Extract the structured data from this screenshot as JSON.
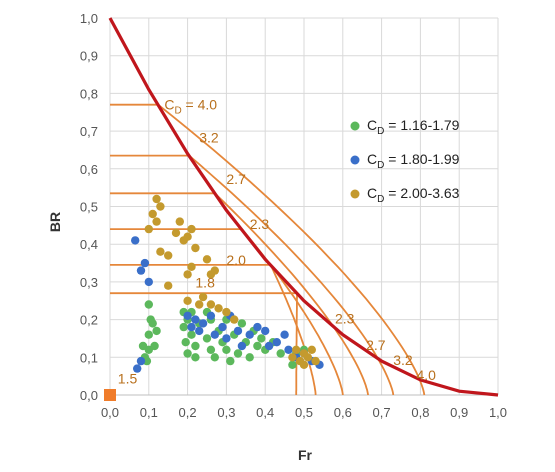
{
  "chart_data": {
    "type": "scatter",
    "xlabel": "Fr",
    "ylabel": "BR",
    "xlim": [
      0,
      1
    ],
    "ylim": [
      0,
      1
    ],
    "x_ticks": [
      "0,0",
      "0,1",
      "0,2",
      "0,3",
      "0,4",
      "0,5",
      "0,6",
      "0,7",
      "0,8",
      "0,9",
      "1,0"
    ],
    "y_ticks": [
      "0,0",
      "0,1",
      "0,2",
      "0,3",
      "0,4",
      "0,5",
      "0,6",
      "0,7",
      "0,8",
      "0,9",
      "1,0"
    ],
    "grid": true,
    "legend_position": "right",
    "colors": {
      "limit_curve": "#c0161c",
      "cd_curves": "#e5873a",
      "cd_labels": "#b8701d",
      "marker_origin": "#f07c2a",
      "grid": "#d9d9d9"
    },
    "limit_curve": {
      "name": "",
      "points": [
        [
          0,
          1.0
        ],
        [
          0.1,
          0.81
        ],
        [
          0.2,
          0.64
        ],
        [
          0.3,
          0.49
        ],
        [
          0.4,
          0.36
        ],
        [
          0.5,
          0.25
        ],
        [
          0.6,
          0.16
        ],
        [
          0.7,
          0.09
        ],
        [
          0.8,
          0.04
        ],
        [
          0.9,
          0.01
        ],
        [
          1.0,
          0
        ]
      ]
    },
    "cd_curves": [
      {
        "cd": 1.5,
        "label": "1.5",
        "label_x": 0.02,
        "label_y": 0.03,
        "plateau": 0.0,
        "asymptote": 0.0
      },
      {
        "cd": 1.8,
        "label": "1.8",
        "label_x": 0.22,
        "label_y": 0.285,
        "plateau": 0.27,
        "asymptote": 0.48
      },
      {
        "cd": 2.0,
        "label": "2.0",
        "label_x": 0.3,
        "label_y": 0.345,
        "plateau": 0.345,
        "asymptote": 0.53
      },
      {
        "cd": 2.3,
        "label": "2.3",
        "label_x": 0.36,
        "label_y": 0.44,
        "plateau": 0.44,
        "asymptote": 0.6
      },
      {
        "cd": 2.3,
        "label": "2.3",
        "label_x": 0.58,
        "label_y": 0.19,
        "plateau": null,
        "asymptote": null
      },
      {
        "cd": 2.7,
        "label": "2.7",
        "label_x": 0.3,
        "label_y": 0.56,
        "plateau": 0.535,
        "asymptote": 0.665
      },
      {
        "cd": 2.7,
        "label": "2.7",
        "label_x": 0.66,
        "label_y": 0.12,
        "plateau": null,
        "asymptote": null
      },
      {
        "cd": 3.2,
        "label": "3.2",
        "label_x": 0.23,
        "label_y": 0.67,
        "plateau": 0.635,
        "asymptote": 0.73
      },
      {
        "cd": 3.2,
        "label": "3.2",
        "label_x": 0.73,
        "label_y": 0.08,
        "plateau": null,
        "asymptote": null
      },
      {
        "cd": 4.0,
        "label": "4.0",
        "label_x": 0.79,
        "label_y": 0.04,
        "plateau": 0.77,
        "asymptote": 0.81
      }
    ],
    "cd_top_label": {
      "prefix": "C",
      "sub": "D",
      "suffix": " = 4.0"
    },
    "series": [
      {
        "name": "C_D = 1.16-1.79",
        "legend": {
          "prefix": "C",
          "sub": "D",
          "suffix": " = 1.16-1.79"
        },
        "color": "#5cb85c",
        "points": [
          [
            0.085,
            0.13
          ],
          [
            0.09,
            0.1
          ],
          [
            0.1,
            0.12
          ],
          [
            0.1,
            0.24
          ],
          [
            0.105,
            0.2
          ],
          [
            0.11,
            0.19
          ],
          [
            0.095,
            0.09
          ],
          [
            0.1,
            0.16
          ],
          [
            0.115,
            0.13
          ],
          [
            0.12,
            0.17
          ],
          [
            0.19,
            0.22
          ],
          [
            0.19,
            0.18
          ],
          [
            0.195,
            0.14
          ],
          [
            0.2,
            0.11
          ],
          [
            0.2,
            0.2
          ],
          [
            0.21,
            0.22
          ],
          [
            0.21,
            0.16
          ],
          [
            0.22,
            0.13
          ],
          [
            0.22,
            0.1
          ],
          [
            0.23,
            0.19
          ],
          [
            0.25,
            0.22
          ],
          [
            0.25,
            0.15
          ],
          [
            0.26,
            0.12
          ],
          [
            0.26,
            0.2
          ],
          [
            0.27,
            0.1
          ],
          [
            0.28,
            0.17
          ],
          [
            0.29,
            0.14
          ],
          [
            0.3,
            0.12
          ],
          [
            0.3,
            0.2
          ],
          [
            0.31,
            0.09
          ],
          [
            0.32,
            0.16
          ],
          [
            0.33,
            0.11
          ],
          [
            0.34,
            0.19
          ],
          [
            0.35,
            0.14
          ],
          [
            0.36,
            0.1
          ],
          [
            0.37,
            0.17
          ],
          [
            0.38,
            0.13
          ],
          [
            0.39,
            0.15
          ],
          [
            0.4,
            0.12
          ],
          [
            0.42,
            0.14
          ],
          [
            0.44,
            0.11
          ],
          [
            0.47,
            0.08
          ],
          [
            0.48,
            0.11
          ],
          [
            0.5,
            0.12
          ]
        ]
      },
      {
        "name": "C_D = 1.80-1.99",
        "legend": {
          "prefix": "C",
          "sub": "D",
          "suffix": " = 1.80-1.99"
        },
        "color": "#3a6fc9",
        "points": [
          [
            0.065,
            0.41
          ],
          [
            0.08,
            0.33
          ],
          [
            0.09,
            0.35
          ],
          [
            0.1,
            0.3
          ],
          [
            0.07,
            0.07
          ],
          [
            0.08,
            0.09
          ],
          [
            0.2,
            0.21
          ],
          [
            0.21,
            0.18
          ],
          [
            0.22,
            0.2
          ],
          [
            0.23,
            0.17
          ],
          [
            0.24,
            0.19
          ],
          [
            0.26,
            0.21
          ],
          [
            0.27,
            0.16
          ],
          [
            0.29,
            0.18
          ],
          [
            0.3,
            0.15
          ],
          [
            0.31,
            0.21
          ],
          [
            0.33,
            0.17
          ],
          [
            0.34,
            0.13
          ],
          [
            0.36,
            0.16
          ],
          [
            0.38,
            0.18
          ],
          [
            0.4,
            0.17
          ],
          [
            0.41,
            0.13
          ],
          [
            0.43,
            0.14
          ],
          [
            0.45,
            0.16
          ],
          [
            0.46,
            0.12
          ],
          [
            0.48,
            0.1
          ],
          [
            0.5,
            0.11
          ],
          [
            0.52,
            0.09
          ],
          [
            0.54,
            0.08
          ]
        ]
      },
      {
        "name": "C_D = 2.00-3.63",
        "legend": {
          "prefix": "C",
          "sub": "D",
          "suffix": " = 2.00-3.63"
        },
        "color": "#c49a2e",
        "points": [
          [
            0.1,
            0.44
          ],
          [
            0.11,
            0.48
          ],
          [
            0.12,
            0.52
          ],
          [
            0.13,
            0.5
          ],
          [
            0.12,
            0.46
          ],
          [
            0.13,
            0.38
          ],
          [
            0.15,
            0.37
          ],
          [
            0.15,
            0.29
          ],
          [
            0.17,
            0.43
          ],
          [
            0.18,
            0.46
          ],
          [
            0.19,
            0.41
          ],
          [
            0.2,
            0.42
          ],
          [
            0.21,
            0.44
          ],
          [
            0.22,
            0.39
          ],
          [
            0.2,
            0.32
          ],
          [
            0.21,
            0.34
          ],
          [
            0.25,
            0.36
          ],
          [
            0.26,
            0.32
          ],
          [
            0.27,
            0.33
          ],
          [
            0.2,
            0.25
          ],
          [
            0.23,
            0.24
          ],
          [
            0.24,
            0.26
          ],
          [
            0.26,
            0.24
          ],
          [
            0.28,
            0.23
          ],
          [
            0.3,
            0.22
          ],
          [
            0.32,
            0.2
          ],
          [
            0.47,
            0.1
          ],
          [
            0.48,
            0.12
          ],
          [
            0.49,
            0.09
          ],
          [
            0.5,
            0.11
          ],
          [
            0.51,
            0.1
          ],
          [
            0.52,
            0.12
          ],
          [
            0.53,
            0.09
          ],
          [
            0.5,
            0.08
          ]
        ]
      }
    ]
  }
}
